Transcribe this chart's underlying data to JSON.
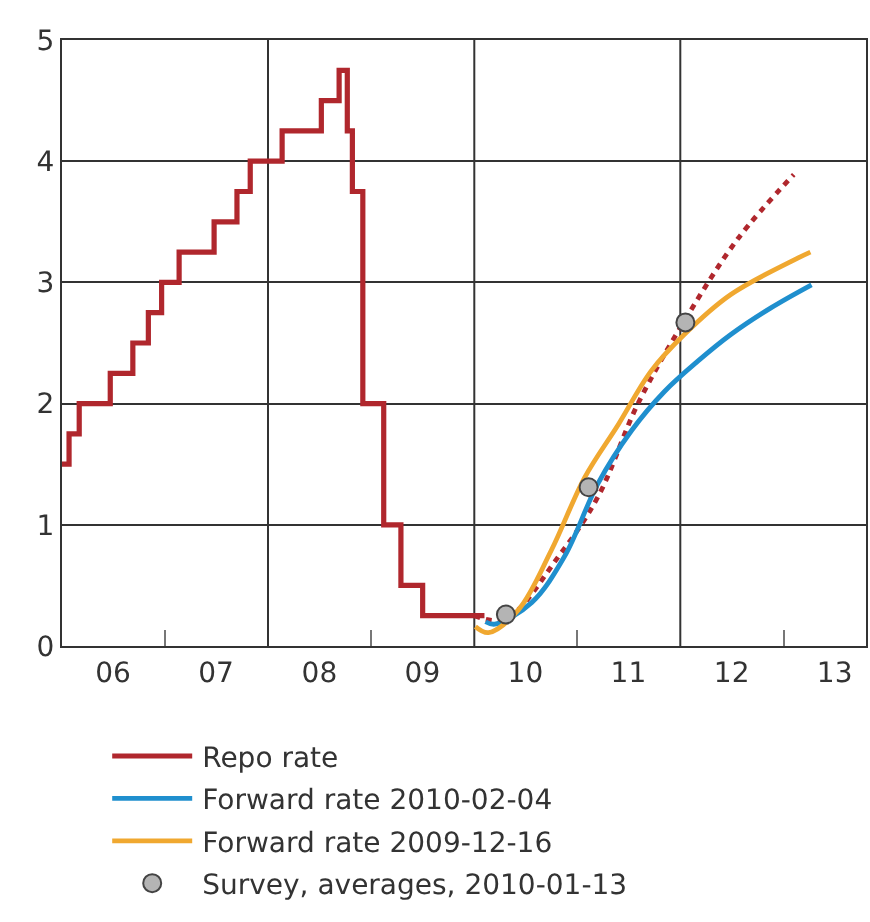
{
  "chart_data": {
    "type": "line",
    "series": [
      {
        "name": "Repo rate",
        "type": "step",
        "color": "#b0272d",
        "line_style": "solid",
        "x": [
          "2006-01-01",
          "2006-01-26",
          "2006-03-03",
          "2006-06-21",
          "2006-09-09",
          "2006-11-03",
          "2006-12-20",
          "2007-02-20",
          "2007-06-24",
          "2007-09-13",
          "2007-10-30",
          "2008-02-20",
          "2008-07-08",
          "2008-09-09",
          "2008-10-08",
          "2008-10-26",
          "2008-12-02",
          "2009-02-14",
          "2009-04-16",
          "2009-07-02",
          "2010-02-06"
        ],
        "values": [
          1.5,
          1.75,
          2.0,
          2.25,
          2.5,
          2.75,
          3.0,
          3.25,
          3.5,
          3.75,
          4.0,
          4.25,
          4.5,
          4.75,
          4.25,
          3.75,
          2.0,
          1.0,
          0.5,
          0.25,
          0.25
        ]
      },
      {
        "color": "#b0272d",
        "line_style": "dotted",
        "x": [
          "2010-01-01",
          "2010-04-20",
          "2010-10-27",
          "2011-03-15",
          "2011-08-04",
          "2012-01-15",
          "2012-07-23",
          "2013-02-06"
        ],
        "values": [
          0.25,
          0.22,
          0.74,
          1.23,
          2.0,
          2.68,
          3.36,
          3.89
        ]
      },
      {
        "name": "Forward rate 2010-02-04",
        "color": "#1f8fce",
        "line_style": "solid",
        "x": [
          "2010-02-10",
          "2010-03-15",
          "2010-07-24",
          "2010-11-17",
          "2011-03-15",
          "2011-07-13",
          "2011-11-06",
          "2012-03-03",
          "2012-06-28",
          "2012-11-17",
          "2013-04-10"
        ],
        "values": [
          0.2,
          0.18,
          0.36,
          0.74,
          1.34,
          1.78,
          2.1,
          2.35,
          2.57,
          2.79,
          2.98
        ]
      },
      {
        "name": "Forward rate 2009-12-16",
        "color": "#f0a830",
        "line_style": "solid",
        "x": [
          "2010-01-05",
          "2010-02-20",
          "2010-06-07",
          "2010-10-01",
          "2011-01-27",
          "2011-05-27",
          "2011-09-20",
          "2012-01-15",
          "2012-06-28",
          "2013-02-20",
          "2013-04-06"
        ],
        "values": [
          0.16,
          0.11,
          0.3,
          0.79,
          1.39,
          1.83,
          2.27,
          2.57,
          2.9,
          3.2,
          3.25
        ]
      },
      {
        "name": "Survey, averages, 2010-01-13",
        "type": "scatter",
        "color": "#b4b4b4",
        "marker": "circle",
        "x": [
          "2010-04-23",
          "2011-02-10",
          "2012-01-19"
        ],
        "values": [
          0.26,
          1.31,
          2.67
        ]
      }
    ],
    "xlim": [
      "2006-01-01",
      "2013-10-20"
    ],
    "xticks": [
      {
        "value": "2006-07-01",
        "label": "06"
      },
      {
        "value": "2007-07-01",
        "label": "07"
      },
      {
        "value": "2008-07-01",
        "label": "08"
      },
      {
        "value": "2009-07-01",
        "label": "09"
      },
      {
        "value": "2010-07-01",
        "label": "10"
      },
      {
        "value": "2011-07-01",
        "label": "11"
      },
      {
        "value": "2012-07-01",
        "label": "12"
      },
      {
        "value": "2013-07-01",
        "label": "13"
      },
      {
        "value": "2007-01-01",
        "label": null
      },
      {
        "value": "2009-01-01",
        "label": null
      },
      {
        "value": "2011-01-01",
        "label": null
      },
      {
        "value": "2013-01-01",
        "label": null
      }
    ],
    "ylim": [
      0,
      5
    ],
    "yticks": [
      0,
      1,
      2,
      3,
      4,
      5
    ],
    "ref_lines": [
      {
        "axis": "x",
        "value": "2008-01-01",
        "color": "#333333"
      },
      {
        "axis": "x",
        "value": "2010-01-01",
        "color": "#333333"
      },
      {
        "axis": "x",
        "value": "2012-01-01",
        "color": "#333333"
      }
    ],
    "grid": "y",
    "legend": "bottom"
  }
}
